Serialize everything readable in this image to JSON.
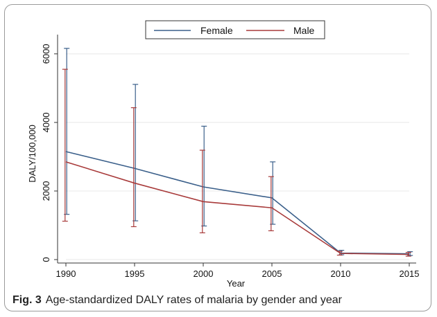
{
  "figure": {
    "label": "Fig. 3",
    "caption": "Age-standardized DALY rates of malaria by gender and year"
  },
  "chart_data": {
    "type": "line",
    "title": "",
    "xlabel": "Year",
    "ylabel": "DALY/100,000",
    "x": [
      1990,
      1995,
      2000,
      2005,
      2010,
      2015
    ],
    "xticks": [
      "1990",
      "1995",
      "2000",
      "2005",
      "2010",
      "2015"
    ],
    "yticks": [
      "0",
      "2000",
      "4000",
      "6000"
    ],
    "xlim": [
      1990,
      2015
    ],
    "ylim": [
      -100,
      6400
    ],
    "grid": true,
    "legend_position": "top",
    "series": [
      {
        "name": "Female",
        "color": "#3a5f8a",
        "values": [
          3150,
          2660,
          2120,
          1800,
          190,
          170
        ],
        "lower": [
          1320,
          1130,
          980,
          1030,
          140,
          120
        ],
        "upper": [
          6160,
          5110,
          3890,
          2850,
          270,
          230
        ]
      },
      {
        "name": "Male",
        "color": "#a83a3a",
        "values": [
          2850,
          2230,
          1690,
          1510,
          180,
          150
        ],
        "lower": [
          1120,
          960,
          780,
          840,
          130,
          100
        ],
        "upper": [
          5550,
          4430,
          3190,
          2420,
          240,
          210
        ]
      }
    ]
  }
}
